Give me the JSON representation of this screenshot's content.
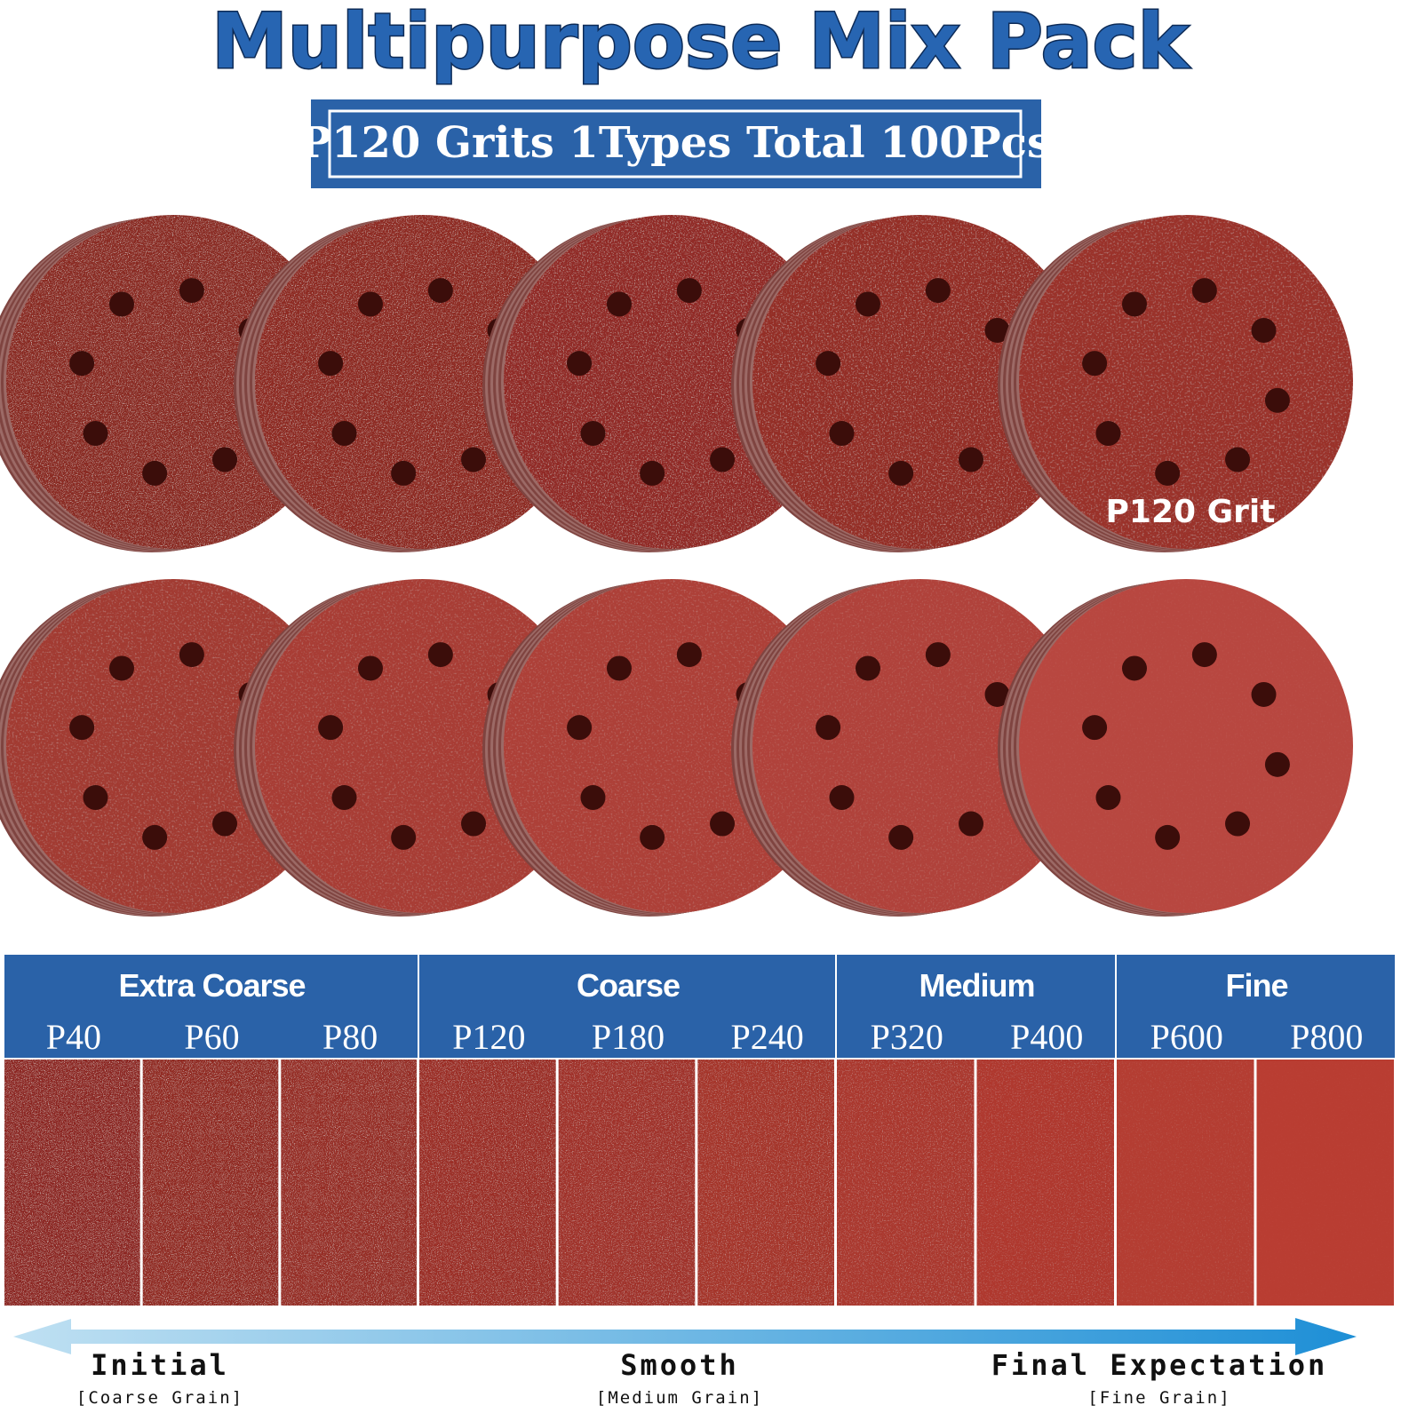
{
  "header": {
    "title": "Multipurpose Mix Pack",
    "badge": "P120 Grits 1Types Total 100Pcs"
  },
  "disc_label": "P120 Grit",
  "groups": [
    {
      "name": "Extra Coarse",
      "grits": [
        "P40",
        "P60",
        "P80"
      ]
    },
    {
      "name": "Coarse",
      "grits": [
        "P120",
        "P180",
        "P240"
      ]
    },
    {
      "name": "Medium",
      "grits": [
        "P320",
        "P400"
      ]
    },
    {
      "name": "Fine",
      "grits": [
        "P600",
        "P800"
      ]
    }
  ],
  "scale": [
    {
      "label": "Initial",
      "note": "[Coarse Grain]"
    },
    {
      "label": "Smooth",
      "note": "[Medium Grain]"
    },
    {
      "label": "Final Expectation",
      "note": "[Fine Grain]"
    }
  ]
}
